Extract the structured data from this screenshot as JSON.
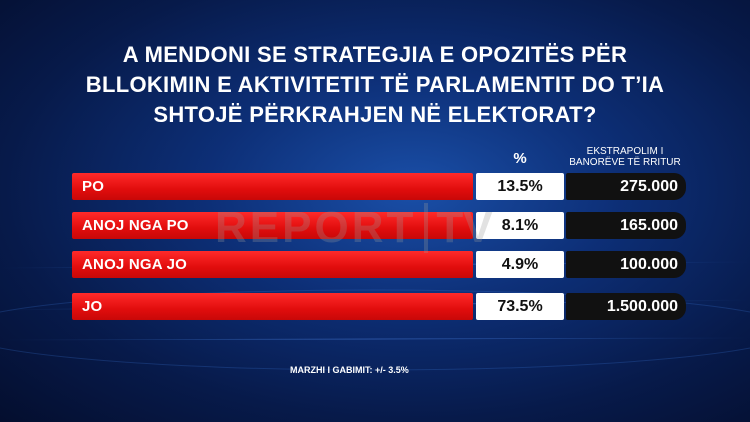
{
  "chart_data": {
    "type": "table",
    "title": "A MENDONI SE STRATEGJIA E OPOZITËS PËR BLLOKIMIN E AKTIVITETIT TË PARLAMENTIT DO T’IA SHTOJË PËRKRAHJEN NË ELEKTORAT?",
    "columns": [
      "%",
      "EKSTRAPOLIM I BANORËVE TË RRITUR"
    ],
    "categories": [
      "PO",
      "ANOJ NGA PO",
      "ANOJ NGA JO",
      "JO"
    ],
    "values": [
      13.5,
      8.1,
      4.9,
      73.5
    ],
    "rows": [
      {
        "label": "PO",
        "percent": "13.5%",
        "extrapolation": "275.000"
      },
      {
        "label": "ANOJ NGA PO",
        "percent": "8.1%",
        "extrapolation": "165.000"
      },
      {
        "label": "ANOJ NGA JO",
        "percent": "4.9%",
        "extrapolation": "100.000"
      },
      {
        "label": "JO",
        "percent": "73.5%",
        "extrapolation": "1.500.000"
      }
    ],
    "footnote": "MARZHI I GABIMIT: +/- 3.5%"
  },
  "watermark": {
    "text": "REPORT",
    "tv": "TV"
  },
  "colors": {
    "bar": "#e10d0d",
    "percent_box": "#ffffff",
    "extrapolation_box": "#111111",
    "background": "#0d2f77"
  }
}
